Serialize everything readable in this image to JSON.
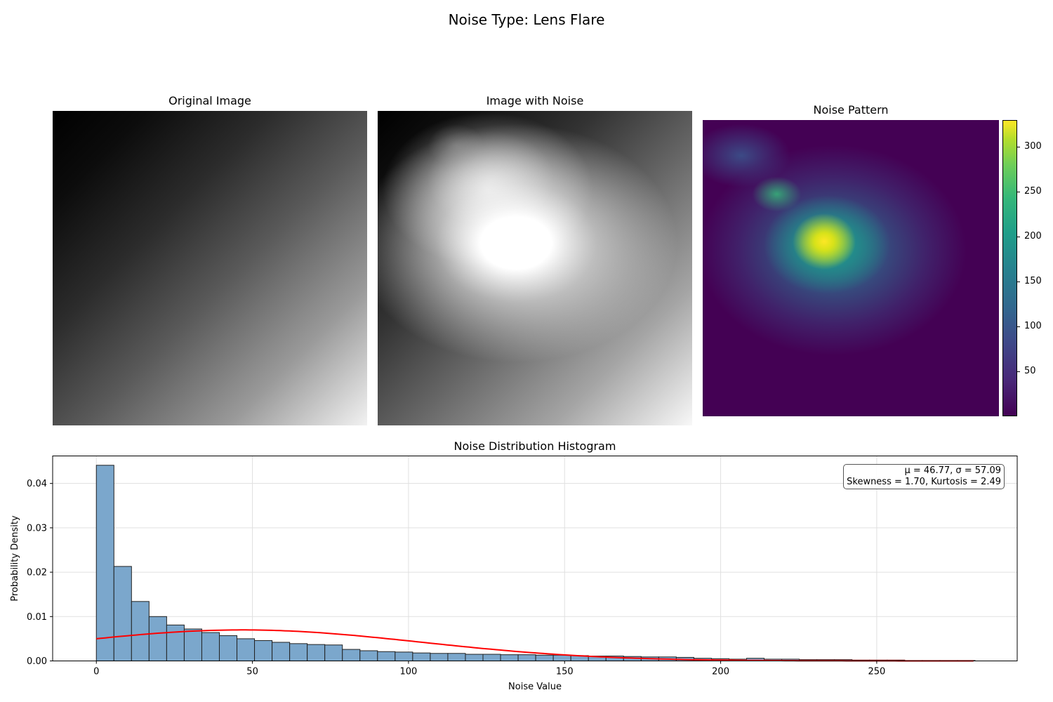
{
  "suptitle": "Noise Type: Lens Flare",
  "panels": {
    "original_title": "Original Image",
    "noisy_title": "Image with Noise",
    "noise_title": "Noise Pattern"
  },
  "colorbar": {
    "colormap": "viridis",
    "range": [
      0,
      330
    ],
    "ticks": [
      50,
      100,
      150,
      200,
      250,
      300
    ]
  },
  "stats": {
    "line1": "μ = 46.77, σ = 57.09",
    "line2": "Skewness = 1.70, Kurtosis = 2.49"
  },
  "chart_data": {
    "type": "bar",
    "title": "Noise Distribution Histogram",
    "xlabel": "Noise Value",
    "ylabel": "Probability Density",
    "xlim": [
      -14,
      295
    ],
    "ylim": [
      0,
      0.0462
    ],
    "xticks": [
      0,
      50,
      100,
      150,
      200,
      250
    ],
    "yticks": [
      0.0,
      0.01,
      0.02,
      0.03,
      0.04
    ],
    "ytick_labels": [
      "0.00",
      "0.01",
      "0.02",
      "0.03",
      "0.04"
    ],
    "grid": true,
    "bar_color": "#7ba7cc",
    "bar_edge": "#222222",
    "line_color": "#ff0000",
    "bin_width": 5.63,
    "bin_start": 0,
    "values": [
      0.0441,
      0.0213,
      0.0134,
      0.01,
      0.0081,
      0.0072,
      0.0064,
      0.0057,
      0.005,
      0.0046,
      0.0042,
      0.0039,
      0.0037,
      0.0036,
      0.0026,
      0.0023,
      0.0021,
      0.002,
      0.0018,
      0.0017,
      0.0017,
      0.0015,
      0.0015,
      0.0014,
      0.0014,
      0.0013,
      0.0013,
      0.0012,
      0.0011,
      0.0011,
      0.001,
      0.0009,
      0.0009,
      0.0008,
      0.0006,
      0.0005,
      0.0004,
      0.0006,
      0.0004,
      0.0004,
      0.0003,
      0.0003,
      0.0003,
      0.0002,
      0.0002,
      0.0002,
      0.0001,
      0.0001,
      0.0001,
      0.0001
    ],
    "normal_fit": {
      "mu": 46.77,
      "sigma": 57.09,
      "x_range": [
        0,
        281
      ]
    }
  }
}
